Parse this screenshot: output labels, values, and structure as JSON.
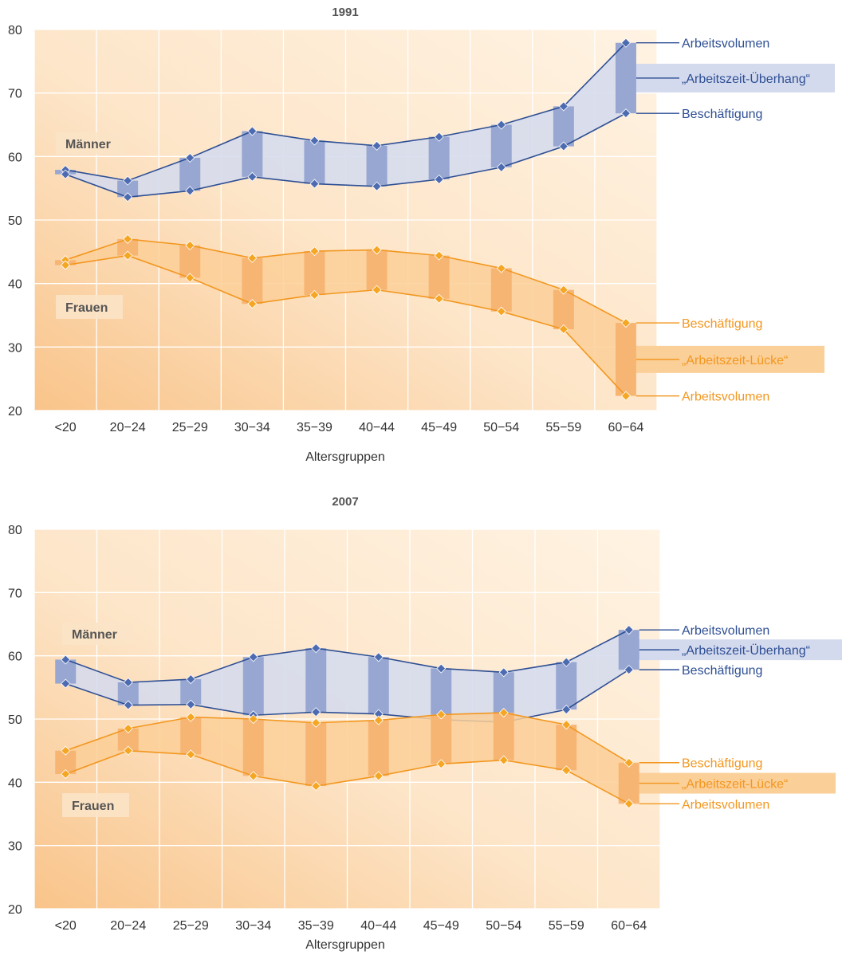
{
  "chart_data": [
    {
      "type": "line",
      "title": "1991",
      "xlabel": "Altersgruppen",
      "ylabel": "",
      "ylim": [
        20,
        80
      ],
      "yticks": [
        20,
        30,
        40,
        50,
        60,
        70,
        80
      ],
      "grid": true,
      "categories": [
        "<20",
        "20−24",
        "25−29",
        "30−34",
        "35−39",
        "40−44",
        "45−49",
        "50−54",
        "55−59",
        "60−64"
      ],
      "groups": [
        {
          "label": "Männer",
          "color": "#2e4f94",
          "band_color": "#d4daee",
          "bar_color": "#97a7d2",
          "marker_color": "#4d6bb0",
          "gap_label": "„Arbeitszeit-Überhang“",
          "series": [
            {
              "name": "Arbeitsvolumen",
              "values": [
                57.9,
                56.2,
                59.8,
                64.0,
                62.5,
                61.7,
                63.1,
                65.0,
                67.9,
                77.9
              ]
            },
            {
              "name": "Beschäftigung",
              "values": [
                57.2,
                53.6,
                54.6,
                56.8,
                55.7,
                55.3,
                56.4,
                58.3,
                61.6,
                66.8
              ]
            }
          ]
        },
        {
          "label": "Frauen",
          "color": "#f29720",
          "band_color": "#fbcf98",
          "bar_color": "#f7b574",
          "marker_color": "#f5a623",
          "gap_label": "„Arbeitszeit-Lücke“",
          "series": [
            {
              "name": "Beschäftigung",
              "values": [
                43.7,
                47.0,
                46.0,
                44.0,
                45.1,
                45.3,
                44.4,
                42.4,
                39.0,
                33.8
              ]
            },
            {
              "name": "Arbeitsvolumen",
              "values": [
                42.9,
                44.4,
                40.9,
                36.8,
                38.2,
                39.0,
                37.6,
                35.6,
                32.8,
                22.3
              ]
            }
          ]
        }
      ]
    },
    {
      "type": "line",
      "title": "2007",
      "xlabel": "Altersgruppen",
      "ylabel": "",
      "ylim": [
        20,
        80
      ],
      "yticks": [
        20,
        30,
        40,
        50,
        60,
        70,
        80
      ],
      "grid": true,
      "categories": [
        "<20",
        "20−24",
        "25−29",
        "30−34",
        "35−39",
        "40−44",
        "45−49",
        "50−54",
        "55−59",
        "60−64"
      ],
      "groups": [
        {
          "label": "Männer",
          "color": "#2e4f94",
          "band_color": "#d4daee",
          "bar_color": "#97a7d2",
          "marker_color": "#4d6bb0",
          "gap_label": "„Arbeitszeit-Überhang“",
          "series": [
            {
              "name": "Arbeitsvolumen",
              "values": [
                59.4,
                55.8,
                56.3,
                59.8,
                61.2,
                59.8,
                58.0,
                57.4,
                59.0,
                64.1
              ]
            },
            {
              "name": "Beschäftigung",
              "values": [
                55.6,
                52.2,
                52.3,
                50.6,
                51.1,
                50.8,
                49.9,
                49.5,
                51.5,
                57.8
              ]
            }
          ]
        },
        {
          "label": "Frauen",
          "color": "#f29720",
          "band_color": "#fbcf98",
          "bar_color": "#f7b574",
          "marker_color": "#f5a623",
          "gap_label": "„Arbeitszeit-Lücke“",
          "series": [
            {
              "name": "Beschäftigung",
              "values": [
                45.0,
                48.5,
                50.3,
                50.0,
                49.4,
                49.8,
                50.7,
                51.0,
                49.1,
                43.1
              ]
            },
            {
              "name": "Arbeitsvolumen",
              "values": [
                41.3,
                45.0,
                44.4,
                41.0,
                39.4,
                41.0,
                42.9,
                43.5,
                41.9,
                36.6
              ]
            }
          ]
        }
      ]
    }
  ]
}
